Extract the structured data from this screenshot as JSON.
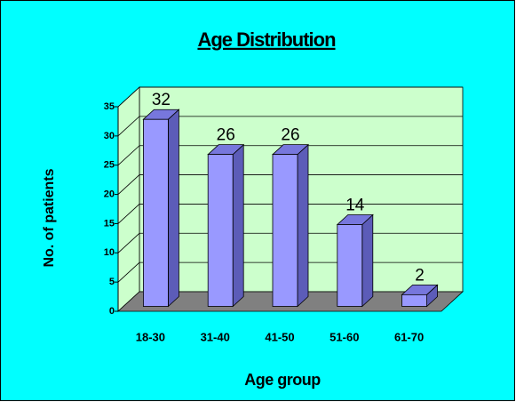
{
  "chart_data": {
    "type": "bar",
    "title": "Age Distribution",
    "x_label": "Age group",
    "y_label": "No. of patients",
    "categories": [
      "18-30",
      "31-40",
      "41-50",
      "51-60",
      "61-70"
    ],
    "values": [
      32,
      26,
      26,
      14,
      2
    ],
    "color": "#9999ff",
    "ylim": [
      0,
      35
    ],
    "yticks": [
      0,
      5,
      10,
      15,
      20,
      25,
      30,
      35
    ],
    "grid": true
  }
}
